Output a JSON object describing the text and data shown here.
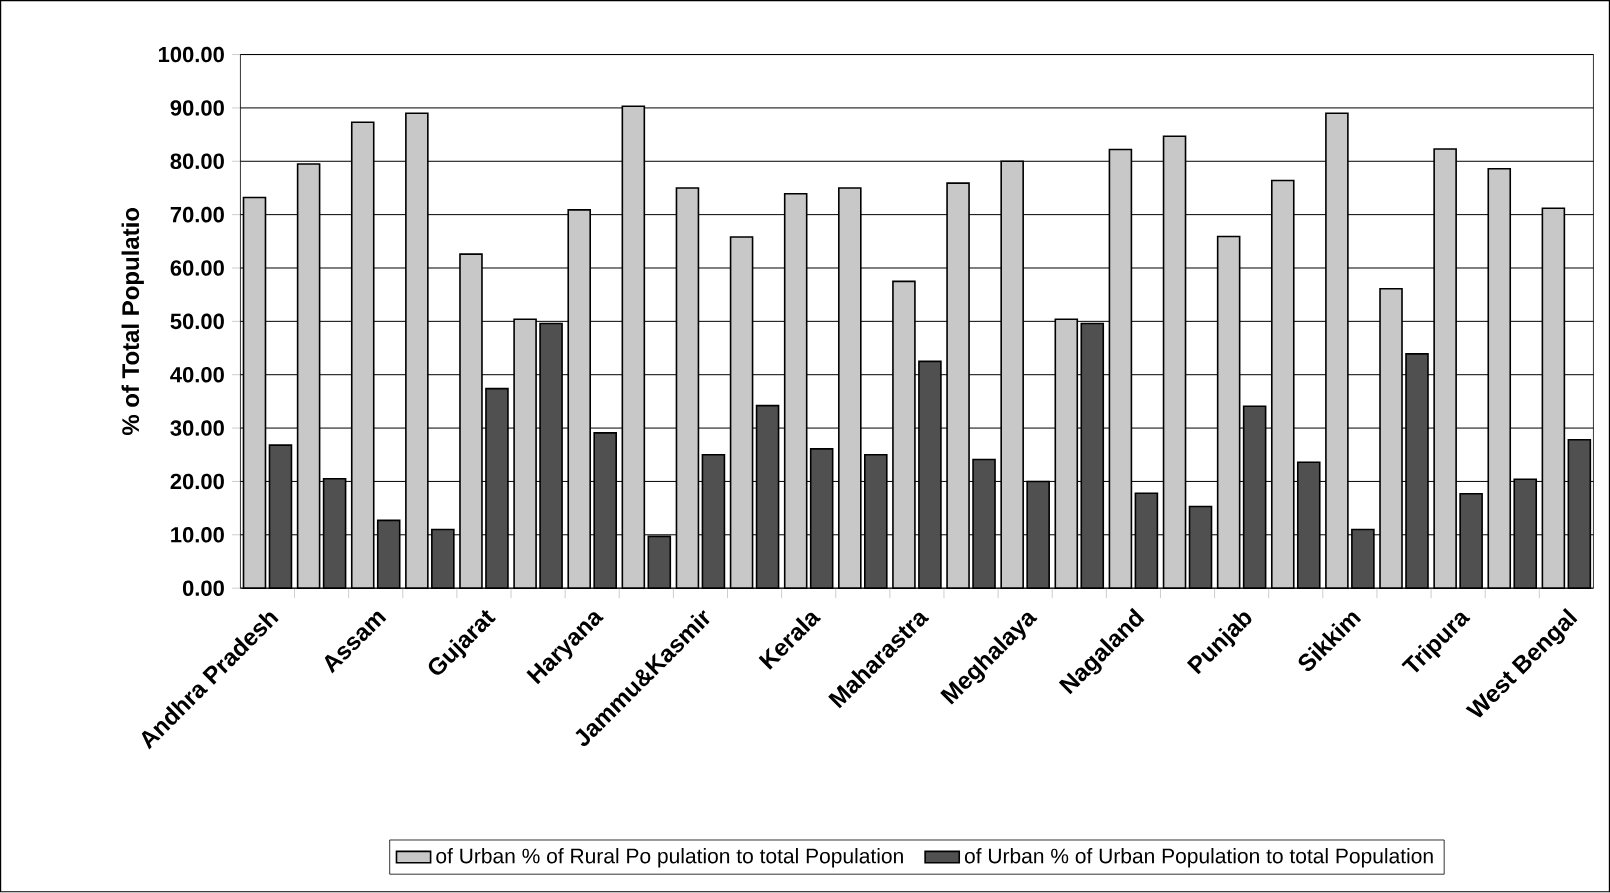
{
  "chart_data": {
    "type": "bar",
    "ylabel": "% of Total Populatio",
    "categories": [
      "Andhra Pradesh",
      null,
      "Assam",
      null,
      "Gujarat",
      null,
      "Haryana",
      null,
      "Jammu&Kasmir",
      null,
      "Kerala",
      null,
      "Maharastra",
      null,
      "Meghalaya",
      null,
      "Nagaland",
      null,
      "Punjab",
      null,
      "Sikkim",
      null,
      "Tripura",
      null,
      "West Bengal"
    ],
    "series": [
      {
        "name": "of Urban % of Rural Po pulation  to total  Population",
        "color": "#c8c8c8",
        "values": [
          73.2,
          79.5,
          87.3,
          89.0,
          62.6,
          50.4,
          70.9,
          90.3,
          75.0,
          65.8,
          73.9,
          75.0,
          57.5,
          75.9,
          80.0,
          50.4,
          82.2,
          84.7,
          65.9,
          76.4,
          89.0,
          56.1,
          82.3,
          78.6,
          71.2
        ]
      },
      {
        "name": "of Urban  % of Urban Population  to total  Population",
        "color": "#505050",
        "values": [
          26.8,
          20.5,
          12.7,
          11.0,
          37.4,
          49.6,
          29.1,
          9.7,
          25.0,
          34.2,
          26.1,
          25.0,
          42.5,
          24.1,
          20.0,
          49.6,
          17.8,
          15.3,
          34.1,
          23.6,
          11.0,
          43.9,
          17.7,
          20.4,
          27.8
        ]
      }
    ],
    "ylim": [
      0,
      100
    ],
    "yticks": [
      {
        "value": 0,
        "label": "0.00"
      },
      {
        "value": 10,
        "label": "10.00"
      },
      {
        "value": 20,
        "label": "20.00"
      },
      {
        "value": 30,
        "label": "30.00"
      },
      {
        "value": 40,
        "label": "40.00"
      },
      {
        "value": 50,
        "label": "50.00"
      },
      {
        "value": 60,
        "label": "60.00"
      },
      {
        "value": 70,
        "label": "70.00"
      },
      {
        "value": 80,
        "label": "80.00"
      },
      {
        "value": 90,
        "label": "90.00"
      },
      {
        "value": 100,
        "label": "100.00"
      }
    ],
    "grid": "y",
    "legend": "bottom"
  }
}
